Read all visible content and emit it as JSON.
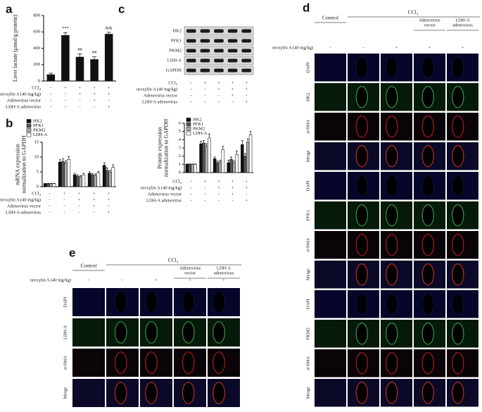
{
  "chart_data": [
    {
      "type": "bar",
      "panel": "a",
      "ylabel": [
        "Liver lactate (μmol/g protein)"
      ],
      "ylim": [
        0,
        800
      ],
      "yticks": [
        0,
        200,
        400,
        600,
        800
      ],
      "color": "#111111",
      "values": [
        80,
        560,
        295,
        265,
        575
      ],
      "errors": [
        15,
        30,
        35,
        30,
        20
      ],
      "value_labels": [
        null,
        "***",
        "##",
        "##",
        "&&"
      ],
      "conditions": [
        {
          "label": "CCl₄",
          "signs": [
            "-",
            "+",
            "+",
            "+",
            "+"
          ]
        },
        {
          "label": "oroxylin A (40 mg/kg)",
          "signs": [
            "-",
            "-",
            "+",
            "+",
            "+"
          ]
        },
        {
          "label": "Adenovirus vector",
          "signs": [
            "-",
            "-",
            "-",
            "+",
            "-"
          ]
        },
        {
          "label": "LDH-A adenovirus",
          "signs": [
            "-",
            "-",
            "-",
            "-",
            "+"
          ]
        }
      ]
    },
    {
      "type": "grouped_bar",
      "panel": "b",
      "ylabel": [
        "mRNA expression",
        "normalization to GAPDH"
      ],
      "ylim": [
        0,
        15
      ],
      "yticks": [
        0,
        5,
        10,
        15
      ],
      "series": [
        {
          "name": "HK2",
          "color": "#111111",
          "values": [
            1,
            8.3,
            4,
            4.5,
            7.2
          ],
          "errors": [
            0.1,
            0.8,
            0.5,
            0.5,
            0.9
          ]
        },
        {
          "name": "PFK1",
          "color": "#555555",
          "values": [
            1,
            8.5,
            3.5,
            4,
            5.5
          ],
          "errors": [
            0.1,
            0.9,
            0.5,
            0.5,
            0.8
          ]
        },
        {
          "name": "PKM2",
          "color": "#aaaaaa",
          "values": [
            1,
            8,
            3.3,
            3.8,
            4.8
          ],
          "errors": [
            0.1,
            0.8,
            0.4,
            0.5,
            0.7
          ]
        },
        {
          "name": "LDH-A",
          "color": "#ffffff",
          "values": [
            1,
            9.2,
            4,
            4.6,
            6.5
          ],
          "errors": [
            0.1,
            1,
            0.5,
            0.6,
            0.9
          ]
        }
      ],
      "conditions": [
        {
          "label": "CCl₄",
          "signs": [
            "-",
            "+",
            "+",
            "+",
            "+"
          ]
        },
        {
          "label": "oroxylin A (40 mg/kg)",
          "signs": [
            "-",
            "-",
            "+",
            "+",
            "+"
          ]
        },
        {
          "label": "Adenovirus vector",
          "signs": [
            "-",
            "-",
            "-",
            "+",
            "-"
          ]
        },
        {
          "label": "LDH-A adenovirus",
          "signs": [
            "-",
            "-",
            "-",
            "-",
            "+"
          ]
        }
      ]
    },
    {
      "type": "grouped_bar",
      "ylabel": [
        "Protein expression",
        "normalization to GAPDH"
      ],
      "ylim": [
        0,
        6
      ],
      "yticks": [
        0,
        1,
        2,
        3,
        4,
        5,
        6
      ],
      "series": [
        {
          "name": "HK2",
          "color": "#111111",
          "values": [
            1,
            3.5,
            1.7,
            1.2,
            3.4
          ],
          "errors": [
            0.05,
            0.3,
            0.2,
            0.3,
            0.5
          ]
        },
        {
          "name": "PFK1",
          "color": "#555555",
          "values": [
            1,
            3.6,
            1.2,
            1.6,
            2
          ],
          "errors": [
            0.05,
            0.3,
            0.2,
            0.3,
            0.3
          ]
        },
        {
          "name": "PKM2",
          "color": "#aaaaaa",
          "values": [
            1,
            3.2,
            1.3,
            1.2,
            3.7
          ],
          "errors": [
            0.05,
            0.3,
            0.2,
            0.2,
            0.4
          ]
        },
        {
          "name": "LDH-A",
          "color": "#ffffff",
          "values": [
            1,
            4.2,
            2.8,
            2.2,
            4.6
          ],
          "errors": [
            0.05,
            0.5,
            0.4,
            0.4,
            0.4
          ]
        }
      ],
      "conditions": [
        {
          "label": "CCl₄",
          "signs": [
            "-",
            "+",
            "+",
            "+",
            "+"
          ]
        },
        {
          "label": "oroxylin A (40 mg/kg)",
          "signs": [
            "-",
            "-",
            "+",
            "+",
            "+"
          ]
        },
        {
          "label": "Adenovirus vector",
          "signs": [
            "-",
            "-",
            "-",
            "+",
            "-"
          ]
        },
        {
          "label": "LDH-A adenovirus",
          "signs": [
            "-",
            "-",
            "-",
            "-",
            "+"
          ]
        }
      ]
    }
  ],
  "blot": {
    "panel": "c",
    "proteins": [
      "HK2",
      "PFK1",
      "PKM2",
      "LDH-A",
      "GAPDH"
    ],
    "conditions": [
      {
        "label": "CCl₄",
        "signs": [
          "-",
          "+",
          "+",
          "+",
          "+"
        ]
      },
      {
        "label": "oroxylin A (40 mg/kg)",
        "signs": [
          "-",
          "-",
          "+",
          "+",
          "+"
        ]
      },
      {
        "label": "Adenovirus vector",
        "signs": [
          "-",
          "-",
          "-",
          "+",
          "-"
        ]
      },
      {
        "label": "LDH-A adenovirus",
        "signs": [
          "-",
          "-",
          "-",
          "-",
          "+"
        ]
      }
    ]
  },
  "micro": [
    {
      "panel": "d",
      "groups": [
        "Control",
        "CCl₄"
      ],
      "columns": [
        [
          "Adenovirus",
          "vector"
        ],
        [
          "LDH-A",
          "adenovirus"
        ]
      ],
      "treatment": {
        "label": "oroxylin A (40 mg/kg)",
        "signs": [
          "-",
          "-",
          "+",
          "+",
          "+"
        ]
      },
      "rows": [
        "DAPI",
        "HK2",
        "α-SMA",
        "Merge",
        "DAPI",
        "PFK1",
        "α-SMA",
        "Merge",
        "DAPI",
        "PKM2",
        "α-SMA",
        "Merge"
      ]
    },
    {
      "panel": "e",
      "groups": [
        "Control",
        "CCl₄"
      ],
      "columns": [
        [
          "Adenovirus",
          "vector"
        ],
        [
          "LDH-A",
          "adenovirus"
        ]
      ],
      "treatment": {
        "label": "oroxylin A (40 mg/kg)",
        "signs": [
          "-",
          "-",
          "+",
          "+",
          "+"
        ]
      },
      "rows": [
        "DAPI",
        "LDH-A",
        "α-SMA",
        "Merge"
      ]
    }
  ]
}
